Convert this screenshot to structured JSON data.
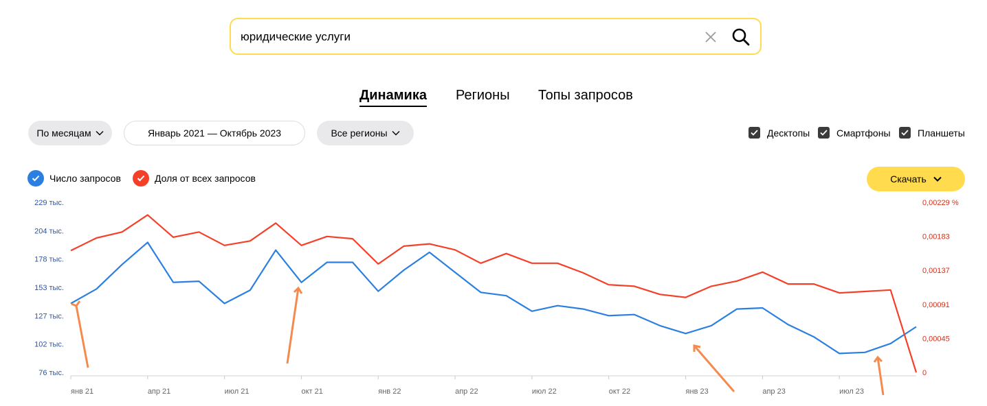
{
  "search": {
    "query": "юридические услуги"
  },
  "tabs": [
    {
      "label": "Динамика",
      "active": true
    },
    {
      "label": "Регионы",
      "active": false
    },
    {
      "label": "Топы запросов",
      "active": false
    }
  ],
  "filters": {
    "period_type": "По месяцам",
    "date_range": "Январь 2021 — Октябрь 2023",
    "region": "Все регионы"
  },
  "devices": [
    {
      "label": "Десктопы",
      "checked": true
    },
    {
      "label": "Смартфоны",
      "checked": true
    },
    {
      "label": "Планшеты",
      "checked": true
    }
  ],
  "legend": [
    {
      "label": "Число запросов",
      "color": "#2b7fe0",
      "checked": true
    },
    {
      "label": "Доля от всех запросов",
      "color": "#f54029",
      "checked": true
    }
  ],
  "download_label": "Скачать",
  "chart_data": {
    "type": "line",
    "x": [
      "2021-01",
      "2021-02",
      "2021-03",
      "2021-04",
      "2021-05",
      "2021-06",
      "2021-07",
      "2021-08",
      "2021-09",
      "2021-10",
      "2021-11",
      "2021-12",
      "2022-01",
      "2022-02",
      "2022-03",
      "2022-04",
      "2022-05",
      "2022-06",
      "2022-07",
      "2022-08",
      "2022-09",
      "2022-10",
      "2022-11",
      "2022-12",
      "2023-01",
      "2023-02",
      "2023-03",
      "2023-04",
      "2023-05",
      "2023-06",
      "2023-07",
      "2023-08",
      "2023-09",
      "2023-10"
    ],
    "x_tick_labels": [
      "янв 21",
      "апр 21",
      "июл 21",
      "окт 21",
      "янв 22",
      "апр 22",
      "июл 22",
      "окт 22",
      "янв 23",
      "апр 23",
      "июл 23"
    ],
    "left_axis": {
      "ticks": [
        "229 тыс.",
        "204 тыс.",
        "178 тыс.",
        "153 тыс.",
        "127 тыс.",
        "102 тыс.",
        "76 тыс."
      ],
      "range": [
        76000,
        229000
      ],
      "color": "#2b54a5"
    },
    "right_axis": {
      "ticks": [
        "0,00229 %",
        "0,00183",
        "0,00137",
        "0,00091",
        "0,00045",
        "0"
      ],
      "range": [
        0,
        0.00229
      ],
      "color": "#d2311b"
    },
    "series": [
      {
        "name": "Число запросов",
        "color": "#2b7fe0",
        "axis": "left",
        "values": [
          138000,
          151000,
          173000,
          193000,
          157000,
          158000,
          138000,
          150000,
          186000,
          157000,
          175000,
          175000,
          149000,
          168000,
          184000,
          166000,
          148000,
          145000,
          131000,
          136000,
          133000,
          127000,
          128000,
          118000,
          111000,
          118000,
          133000,
          134000,
          119000,
          108000,
          93000,
          94000,
          102000,
          117000
        ]
      },
      {
        "name": "Доля от всех запросов",
        "color": "#f54029",
        "axis": "left",
        "values": [
          0.00164,
          0.00181,
          0.00189,
          0.00212,
          0.00182,
          0.00189,
          0.00171,
          0.00177,
          0.00201,
          0.00171,
          0.00183,
          0.0018,
          0.00146,
          0.0017,
          0.00173,
          0.00165,
          0.00147,
          0.0016,
          0.00147,
          0.00147,
          0.00134,
          0.00118,
          0.00116,
          0.00105,
          0.00101,
          0.00116,
          0.00123,
          0.00135,
          0.00119,
          0.00119,
          0.00107,
          0.00109,
          0.00111,
          0.0
        ]
      }
    ],
    "grid": false,
    "legend_position": "top-left"
  }
}
